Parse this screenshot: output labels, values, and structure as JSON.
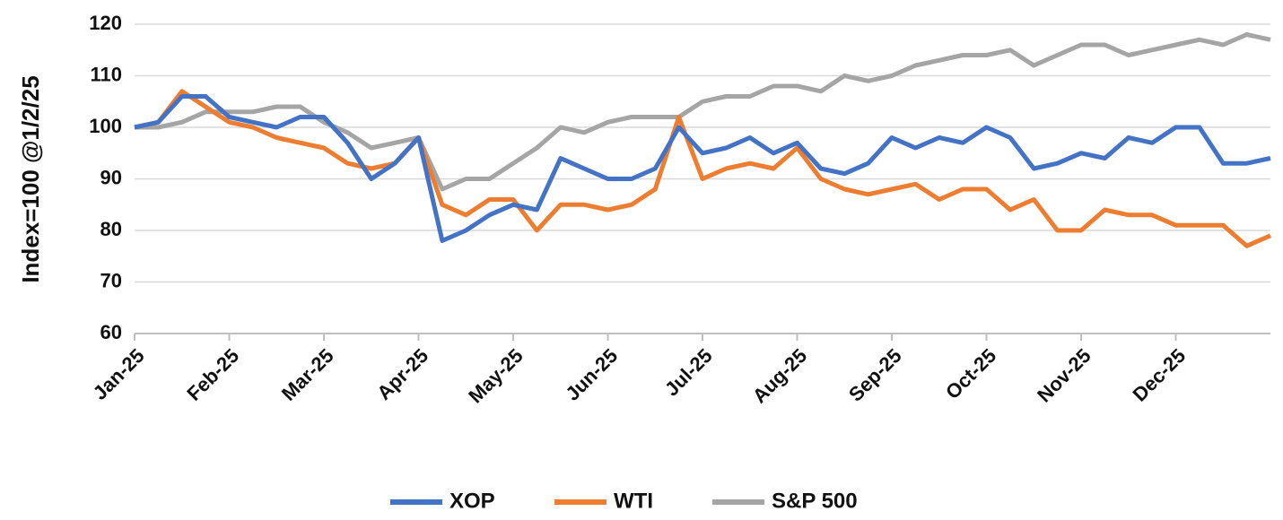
{
  "chart_data": {
    "type": "line",
    "ylabel": "Index=100 @1/2/25",
    "categories": [
      "Jan-25",
      null,
      null,
      null,
      "Feb-25",
      null,
      null,
      null,
      "Mar-25",
      null,
      null,
      null,
      "Apr-25",
      null,
      null,
      null,
      "May-25",
      null,
      null,
      null,
      "Jun-25",
      null,
      null,
      null,
      "Jul-25",
      null,
      null,
      null,
      "Aug-25",
      null,
      null,
      null,
      "Sep-25",
      null,
      null,
      null,
      "Oct-25",
      null,
      null,
      null,
      "Nov-25",
      null,
      null,
      null,
      "Dec-25",
      null,
      null,
      null,
      null
    ],
    "series": [
      {
        "name": "XOP",
        "color": "#4472c4",
        "values": [
          100,
          101,
          106,
          106,
          102,
          101,
          100,
          102,
          102,
          97,
          90,
          93,
          98,
          78,
          80,
          83,
          85,
          84,
          94,
          92,
          90,
          90,
          92,
          100,
          95,
          96,
          98,
          95,
          97,
          92,
          91,
          93,
          98,
          96,
          98,
          97,
          100,
          98,
          92,
          93,
          95,
          94,
          98,
          97,
          100,
          100,
          93,
          93,
          94
        ]
      },
      {
        "name": "WTI",
        "color": "#ed7d31",
        "values": [
          100,
          101,
          107,
          104,
          101,
          100,
          98,
          97,
          96,
          93,
          92,
          93,
          98,
          85,
          83,
          86,
          86,
          80,
          85,
          85,
          84,
          85,
          88,
          102,
          90,
          92,
          93,
          92,
          96,
          90,
          88,
          87,
          88,
          89,
          86,
          88,
          88,
          84,
          86,
          80,
          80,
          84,
          83,
          83,
          81,
          81,
          81,
          77,
          79
        ]
      },
      {
        "name": "S&P 500",
        "color": "#a5a5a5",
        "values": [
          100,
          100,
          101,
          103,
          103,
          103,
          104,
          104,
          101,
          99,
          96,
          97,
          98,
          88,
          90,
          90,
          93,
          96,
          100,
          99,
          101,
          102,
          102,
          102,
          105,
          106,
          106,
          108,
          108,
          107,
          110,
          109,
          110,
          112,
          113,
          114,
          114,
          115,
          112,
          114,
          116,
          116,
          114,
          115,
          116,
          117,
          116,
          118,
          117
        ]
      }
    ],
    "ylim": [
      60,
      120
    ],
    "yticks": [
      60,
      70,
      80,
      90,
      100,
      110,
      120
    ],
    "grid": true
  }
}
